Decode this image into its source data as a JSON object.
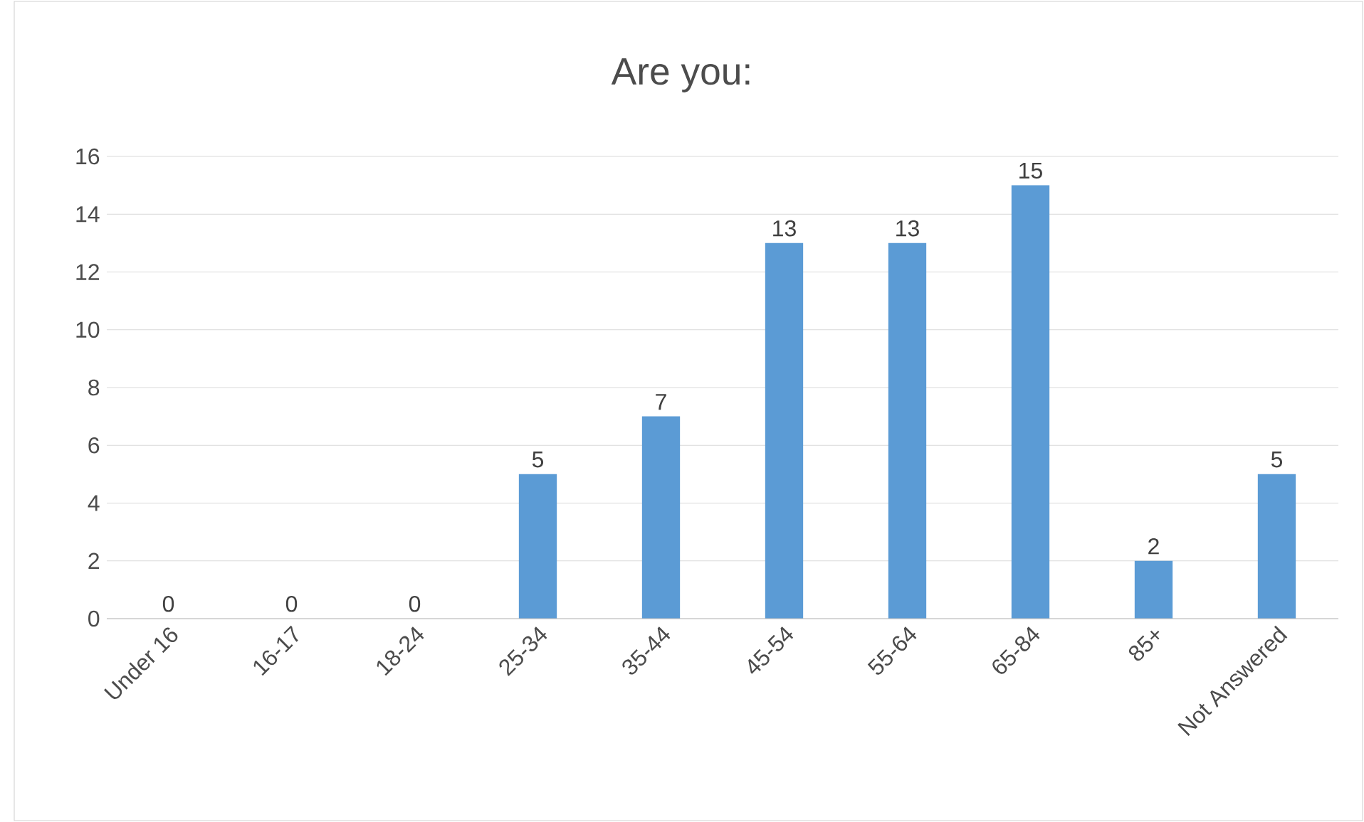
{
  "chart_data": {
    "type": "bar",
    "title": "Are you:",
    "categories": [
      "Under 16",
      "16-17",
      "18-24",
      "25-34",
      "35-44",
      "45-54",
      "55-64",
      "65-84",
      "85+",
      "Not Answered"
    ],
    "values": [
      0,
      0,
      0,
      5,
      7,
      13,
      13,
      15,
      2,
      5
    ],
    "color": "#5b9bd5",
    "ylim": [
      0,
      16
    ],
    "yticks": [
      0,
      2,
      4,
      6,
      8,
      10,
      12,
      14,
      16
    ],
    "grid": "y",
    "data_labels": true
  }
}
